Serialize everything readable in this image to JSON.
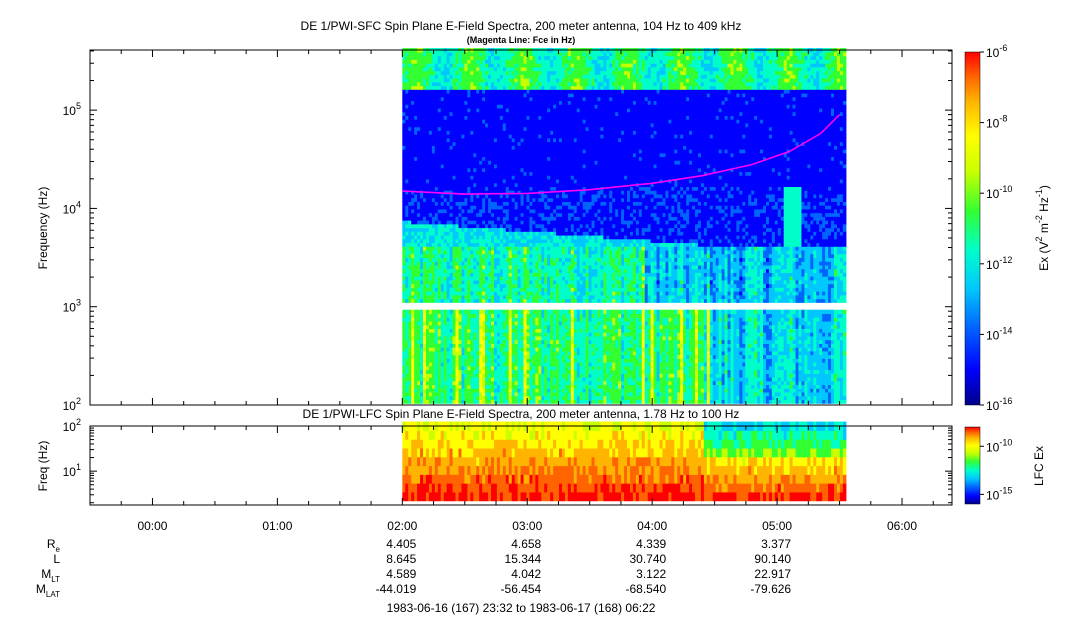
{
  "colors": {
    "scale": [
      "#00008b",
      "#0000ff",
      "#0064ff",
      "#00c8ff",
      "#00ffc8",
      "#32ff32",
      "#c8ff00",
      "#ffff00",
      "#ffb400",
      "#ff6400",
      "#ff0000"
    ],
    "fce_line": "#ff00ff",
    "no_data": "#ffffff"
  },
  "chart_data": [
    {
      "type": "heatmap",
      "title": "DE 1/PWI-SFC  Spin Plane E-Field Spectra, 200 meter antenna, 104 Hz to 409 kHz",
      "subtitle": "(Magenta Line: Fce in Hz)",
      "ylabel": "Frequency (Hz)",
      "yscale": "log",
      "ylim": [
        100,
        409000
      ],
      "yticks": [
        {
          "base": "10",
          "exp": "2"
        },
        {
          "base": "10",
          "exp": "3"
        },
        {
          "base": "10",
          "exp": "4"
        },
        {
          "base": "10",
          "exp": "5"
        }
      ],
      "data_range_hours": [
        2.0,
        5.55
      ],
      "gap_hz": [
        900,
        1060
      ],
      "colorbar": {
        "label_parts": [
          "Ex (V",
          "2",
          " m",
          "-2",
          " Hz",
          "-1",
          ")"
        ],
        "scale": "log",
        "range": [
          1e-16,
          1e-06
        ],
        "ticks": [
          {
            "base": "10",
            "exp": "-16"
          },
          {
            "base": "10",
            "exp": "-14"
          },
          {
            "base": "10",
            "exp": "-12"
          },
          {
            "base": "10",
            "exp": "-10"
          },
          {
            "base": "10",
            "exp": "-8"
          },
          {
            "base": "10",
            "exp": "-6"
          }
        ]
      },
      "series": [
        {
          "name": "Fce",
          "x_hours": [
            2.0,
            2.5,
            3.0,
            3.5,
            4.0,
            4.4,
            4.8,
            5.1,
            5.35,
            5.5
          ],
          "y_hz": [
            15000,
            14000,
            14200,
            15500,
            18000,
            21500,
            28000,
            38000,
            58000,
            90000
          ]
        }
      ]
    },
    {
      "type": "heatmap",
      "title": "DE 1/PWI-LFC  Spin Plane E-Field Spectra, 200 meter antenna, 1.78 Hz to 100 Hz",
      "ylabel": "Freq (Hz)",
      "yscale": "log",
      "ylim": [
        1.78,
        100
      ],
      "yticks": [
        {
          "base": "10",
          "exp": "1"
        },
        {
          "base": "10",
          "exp": "2"
        }
      ],
      "data_range_hours": [
        2.0,
        5.55
      ],
      "colorbar": {
        "label": "LFC Ex",
        "scale": "log",
        "range": [
          1e-16,
          1e-08
        ],
        "ticks": [
          {
            "base": "10",
            "exp": "-15"
          },
          {
            "base": "10",
            "exp": "-10"
          }
        ]
      }
    }
  ],
  "time_axis": {
    "range_hours": [
      -0.5,
      6.4
    ],
    "ticks": [
      "00:00",
      "01:00",
      "02:00",
      "03:00",
      "04:00",
      "05:00",
      "06:00"
    ],
    "tick_hours": [
      0,
      1,
      2,
      3,
      4,
      5,
      6
    ]
  },
  "ephemeris": {
    "rows": [
      {
        "label": "R",
        "sub": "e",
        "values": [
          "4.405",
          "4.658",
          "4.339",
          "3.377"
        ]
      },
      {
        "label": "L",
        "sub": "",
        "values": [
          "8.645",
          "15.344",
          "30.740",
          "90.140"
        ]
      },
      {
        "label": "M",
        "sub": "LT",
        "values": [
          "4.589",
          "4.042",
          "3.122",
          "22.917"
        ]
      },
      {
        "label": "M",
        "sub": "LAT",
        "values": [
          "-44.019",
          "-56.454",
          "-68.540",
          "-79.626"
        ]
      }
    ],
    "value_hours": [
      2,
      3,
      4,
      5
    ]
  },
  "time_range": "1983-06-16 (167) 23:32 to 1983-06-17 (168) 06:22"
}
